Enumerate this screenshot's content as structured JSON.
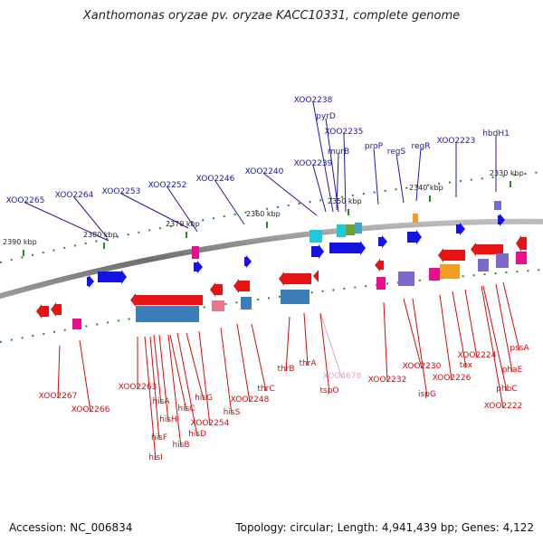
{
  "title": "Xanthomonas oryzae pv. oryzae KACC10331, complete genome",
  "footer": {
    "accession": "Accession: NC_006834",
    "summary": "Topology: circular; Length: 4,941,439 bp; Genes: 4,122"
  },
  "ticks": [
    {
      "label": "2390 kbp"
    },
    {
      "label": "2380 kbp"
    },
    {
      "label": "2370 kbp"
    },
    {
      "label": "2360 kbp"
    },
    {
      "label": "2350 kbp"
    },
    {
      "label": "2340 kbp"
    },
    {
      "label": "2330 kbp"
    }
  ],
  "top_labels": [
    {
      "text": "XOO2265"
    },
    {
      "text": "XOO2264"
    },
    {
      "text": "XOO2253"
    },
    {
      "text": "XOO2252"
    },
    {
      "text": "XOO2246"
    },
    {
      "text": "XOO2240"
    },
    {
      "text": "XOO2239"
    },
    {
      "text": "murB"
    },
    {
      "text": "XOO2235"
    },
    {
      "text": "pyrD"
    },
    {
      "text": "XOO2238"
    },
    {
      "text": "proP"
    },
    {
      "text": "regS"
    },
    {
      "text": "regR"
    },
    {
      "text": "XOO2223"
    },
    {
      "text": "hbdH1"
    }
  ],
  "bottom_labels": [
    {
      "text": "XOO2267"
    },
    {
      "text": "XOO2266"
    },
    {
      "text": "XOO2263"
    },
    {
      "text": "hisA"
    },
    {
      "text": "hisH"
    },
    {
      "text": "hisC"
    },
    {
      "text": "hisG"
    },
    {
      "text": "XOO2254"
    },
    {
      "text": "hisD"
    },
    {
      "text": "hisB"
    },
    {
      "text": "hisF"
    },
    {
      "text": "hisI"
    },
    {
      "text": "hisS"
    },
    {
      "text": "XOO2248"
    },
    {
      "text": "thrC"
    },
    {
      "text": "thrB"
    },
    {
      "text": "thrA"
    },
    {
      "text": "XOO4678"
    },
    {
      "text": "tspO"
    },
    {
      "text": "XOO2232"
    },
    {
      "text": "ispG"
    },
    {
      "text": "XOO2230"
    },
    {
      "text": "XOO2226"
    },
    {
      "text": "tex"
    },
    {
      "text": "XOO2224"
    },
    {
      "text": "phbC"
    },
    {
      "text": "XOO2222"
    },
    {
      "text": "phaE"
    },
    {
      "text": "pssA"
    }
  ],
  "colors": {
    "forward_gene": "#1414e0",
    "reverse_gene": "#e81414",
    "forward_label": "#1a1aa8",
    "reverse_label": "#cc1010",
    "pseudo_label": "#e8a0c8",
    "tick_green": "#2a8a2a",
    "backbone": "#7a7a7a"
  }
}
